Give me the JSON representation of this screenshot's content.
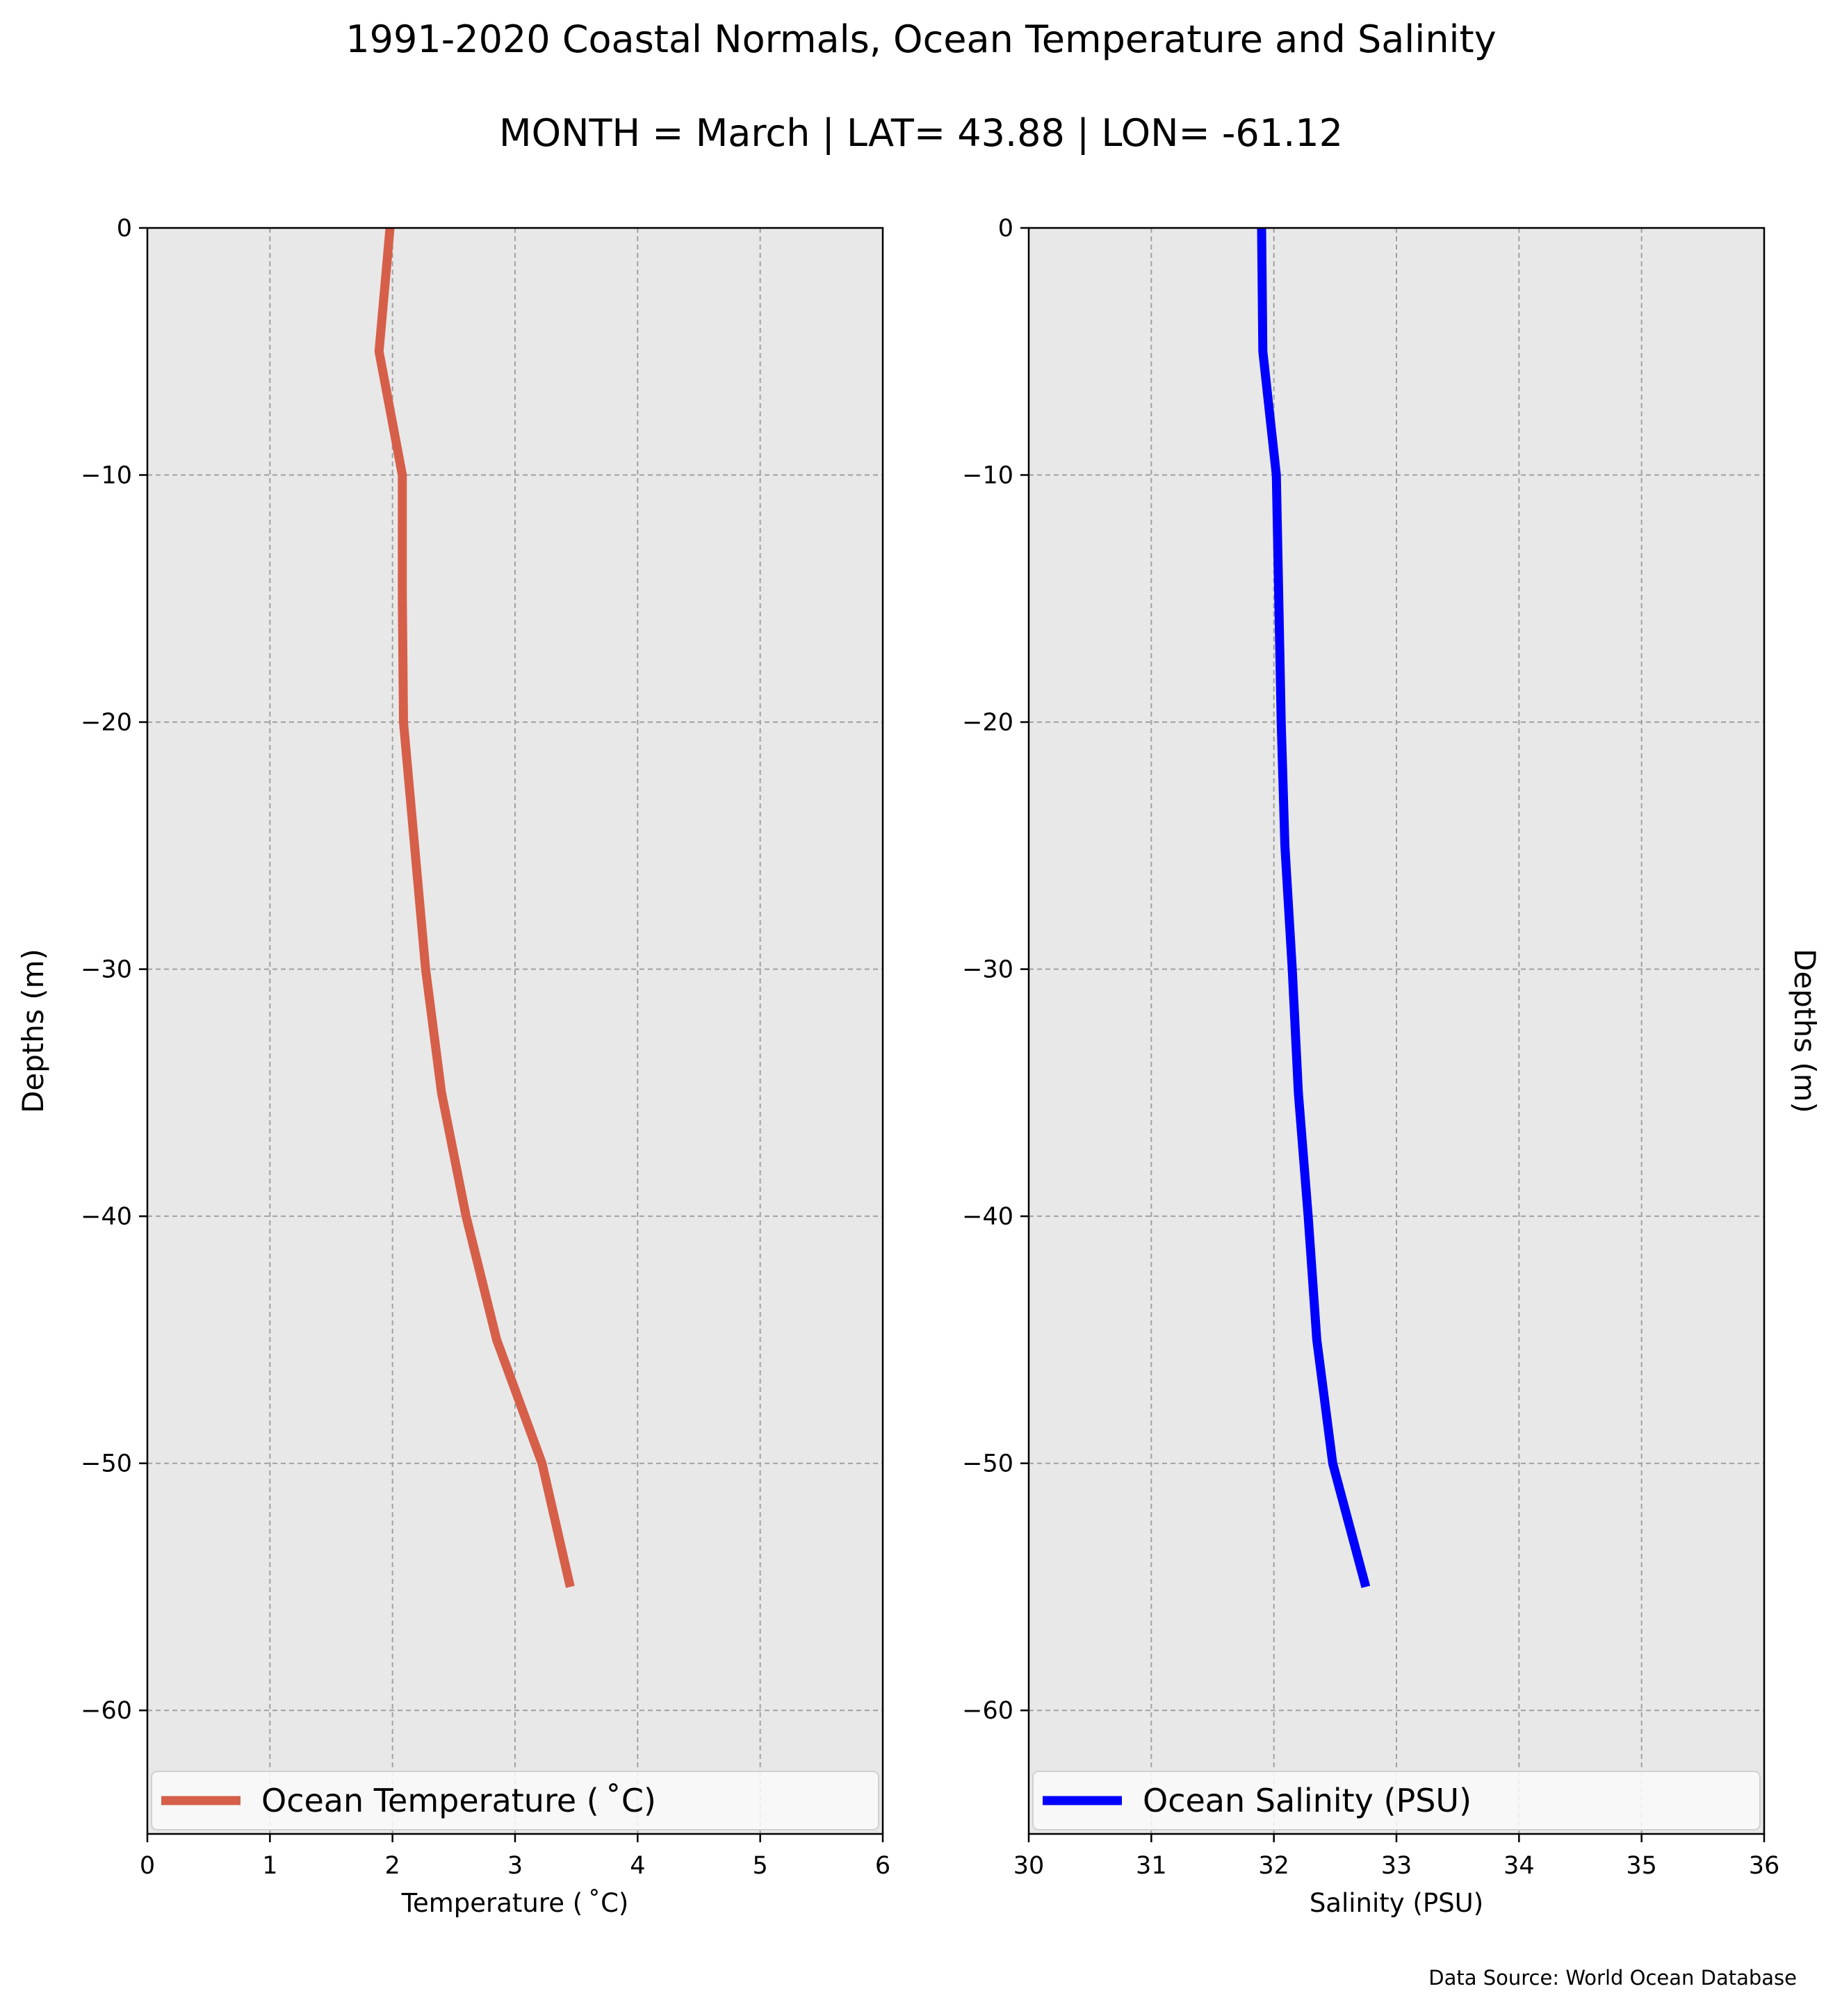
{
  "figure": {
    "title": "1991-2020 Coastal Normals, Ocean Temperature and Salinity",
    "subtitle": "MONTH = March | LAT= 43.88 | LON= -61.12",
    "source_note": "Data Source: World Ocean Database",
    "background_color": "#ffffff",
    "axes_face_color": "#e8e8e8"
  },
  "chart_data": [
    {
      "type": "line",
      "xlabel": "Temperature ($^\\circ$C)",
      "xlabel_display": "Temperature ( ˚C)",
      "ylabel": "Depths (m)",
      "xlim": [
        0,
        6
      ],
      "ylim": [
        -65,
        0
      ],
      "xticks": [
        0,
        1,
        2,
        3,
        4,
        5,
        6
      ],
      "yticks": [
        0,
        -10,
        -20,
        -30,
        -40,
        -50,
        -60
      ],
      "ytick_labels": [
        "0",
        "−10",
        "−20",
        "−30",
        "−40",
        "−50",
        "−60"
      ],
      "grid": true,
      "legend_position": "bottom",
      "series": [
        {
          "name": "Ocean Temperature ( ˚C)",
          "color": "#d65f4a",
          "x": [
            1.98,
            1.89,
            2.08,
            2.08,
            2.09,
            2.18,
            2.27,
            2.4,
            2.6,
            2.85,
            3.22,
            3.45
          ],
          "y": [
            0,
            -5,
            -10,
            -15,
            -20,
            -25,
            -30,
            -35,
            -40,
            -45,
            -50,
            -55
          ]
        }
      ]
    },
    {
      "type": "line",
      "xlabel": "Salinity (PSU)",
      "ylabel": "Depths (m)",
      "xlim": [
        30,
        36
      ],
      "ylim": [
        -65,
        0
      ],
      "xticks": [
        30,
        31,
        32,
        33,
        34,
        35,
        36
      ],
      "yticks": [
        0,
        -10,
        -20,
        -30,
        -40,
        -50,
        -60
      ],
      "ytick_labels": [
        "0",
        "−10",
        "−20",
        "−30",
        "−40",
        "−50",
        "−60"
      ],
      "grid": true,
      "legend_position": "bottom",
      "series": [
        {
          "name": "Ocean Salinity (PSU)",
          "color": "#0000ff",
          "x": [
            31.9,
            31.91,
            32.02,
            32.04,
            32.06,
            32.09,
            32.15,
            32.2,
            32.28,
            32.35,
            32.48,
            32.75
          ],
          "y": [
            0,
            -5,
            -10,
            -15,
            -20,
            -25,
            -30,
            -35,
            -40,
            -45,
            -50,
            -55
          ]
        }
      ]
    }
  ]
}
